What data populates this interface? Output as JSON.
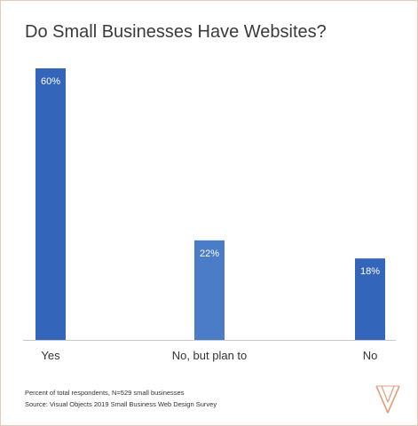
{
  "title": "Do Small Businesses Have Websites?",
  "chart_data": {
    "type": "bar",
    "title": "Do Small Businesses Have Websites?",
    "categories": [
      "Yes",
      "No, but plan to",
      "No"
    ],
    "values": [
      60,
      22,
      18
    ],
    "data_labels": [
      "60%",
      "22%",
      "18%"
    ],
    "unit": "%",
    "ylim": [
      0,
      60
    ],
    "grid": false,
    "legend": "none"
  },
  "colors": {
    "bar": "#3366bb",
    "bar_highlight": "#4a7cc7",
    "axis": "#c8c8c8",
    "frame": "#e8c9b9"
  },
  "footnotes": {
    "note": "Percent of total respondents, N=529 small businesses",
    "source": "Source: Visual Objects 2019 Small Business Web Design Survey"
  },
  "logo": {
    "icon": "visual-objects-logo-icon"
  }
}
